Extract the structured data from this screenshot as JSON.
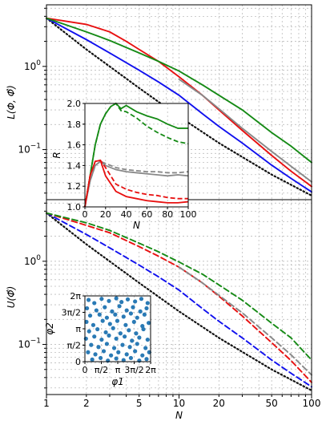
{
  "figure": {
    "xlabel": "N",
    "xticks": [
      {
        "value": 1,
        "label": "1"
      },
      {
        "value": 2,
        "label": "2"
      },
      {
        "value": 5,
        "label": "5"
      },
      {
        "value": 10,
        "label": "10"
      },
      {
        "value": 20,
        "label": "20"
      },
      {
        "value": 50,
        "label": "50"
      },
      {
        "value": 100,
        "label": "100"
      }
    ]
  },
  "chart_data": [
    {
      "id": "top",
      "type": "line",
      "xscale": "log",
      "yscale": "log",
      "xlim": [
        1,
        100
      ],
      "ylim": [
        0.025,
        5.5
      ],
      "ylabel": "L(Φ, Φ̂)",
      "yticks": [
        {
          "value": 1,
          "label": "10^0"
        },
        {
          "value": 0.1,
          "label": "10^-1"
        }
      ],
      "grid": true,
      "series": [
        {
          "style": "solid",
          "color": "#111111",
          "dash": "dotted",
          "x": [
            1,
            2,
            5,
            10,
            20,
            50,
            100
          ],
          "y": [
            3.8,
            1.6,
            0.55,
            0.25,
            0.12,
            0.05,
            0.028
          ]
        },
        {
          "style": "solid",
          "color": "#1010ee",
          "x": [
            1,
            2,
            3,
            5,
            7,
            10,
            15,
            20,
            30,
            50,
            70,
            100
          ],
          "y": [
            3.8,
            2.1,
            1.45,
            0.9,
            0.65,
            0.45,
            0.27,
            0.19,
            0.12,
            0.065,
            0.045,
            0.031
          ]
        },
        {
          "style": "solid",
          "color": "#e81010",
          "x": [
            1,
            2,
            3,
            4,
            5,
            7,
            10,
            15,
            20,
            30,
            50,
            70,
            100
          ],
          "y": [
            3.8,
            3.2,
            2.6,
            2.0,
            1.6,
            1.15,
            0.75,
            0.45,
            0.3,
            0.17,
            0.085,
            0.055,
            0.036
          ]
        },
        {
          "style": "solid",
          "color": "#888888",
          "x": [
            10,
            15,
            20,
            30,
            50,
            70,
            100
          ],
          "y": [
            0.7,
            0.45,
            0.31,
            0.18,
            0.095,
            0.063,
            0.041
          ]
        },
        {
          "style": "solid",
          "color": "#158a15",
          "x": [
            1,
            2,
            3,
            5,
            7,
            10,
            15,
            20,
            30,
            50,
            70,
            100
          ],
          "y": [
            3.8,
            2.6,
            2.05,
            1.45,
            1.15,
            0.88,
            0.6,
            0.45,
            0.3,
            0.16,
            0.11,
            0.07
          ]
        }
      ]
    },
    {
      "id": "inset-R",
      "type": "line",
      "xlim": [
        0,
        100
      ],
      "ylim": [
        1.0,
        2.0
      ],
      "xlabel": "N",
      "ylabel": "R",
      "xticks": [
        {
          "value": 0,
          "label": "0"
        },
        {
          "value": 20,
          "label": "20"
        },
        {
          "value": 40,
          "label": "40"
        },
        {
          "value": 60,
          "label": "60"
        },
        {
          "value": 80,
          "label": "80"
        },
        {
          "value": 100,
          "label": "100"
        }
      ],
      "yticks": [
        {
          "value": 1.0,
          "label": "1.0"
        },
        {
          "value": 1.2,
          "label": "1.2"
        },
        {
          "value": 1.4,
          "label": "1.4"
        },
        {
          "value": 1.6,
          "label": "1.6"
        },
        {
          "value": 1.8,
          "label": "1.8"
        },
        {
          "value": 2.0,
          "label": "2.0"
        }
      ],
      "grid": true,
      "series": [
        {
          "color": "#158a15",
          "dash": "solid",
          "x": [
            0,
            5,
            10,
            15,
            20,
            25,
            30,
            35,
            40,
            50,
            60,
            70,
            80,
            90,
            100
          ],
          "y": [
            1.0,
            1.3,
            1.6,
            1.8,
            1.9,
            1.97,
            2.0,
            1.95,
            1.98,
            1.92,
            1.88,
            1.85,
            1.8,
            1.76,
            1.76
          ]
        },
        {
          "color": "#158a15",
          "dash": "dashed",
          "x": [
            0,
            5,
            10,
            15,
            20,
            25,
            30,
            35,
            40,
            50,
            60,
            70,
            80,
            90,
            100
          ],
          "y": [
            1.0,
            1.3,
            1.6,
            1.8,
            1.9,
            1.97,
            2.0,
            1.93,
            1.92,
            1.86,
            1.78,
            1.72,
            1.67,
            1.63,
            1.61
          ]
        },
        {
          "color": "#888888",
          "dash": "solid",
          "x": [
            0,
            5,
            10,
            15,
            20,
            30,
            40,
            50,
            60,
            70,
            80,
            90,
            100
          ],
          "y": [
            1.0,
            1.25,
            1.4,
            1.44,
            1.4,
            1.36,
            1.34,
            1.33,
            1.32,
            1.31,
            1.3,
            1.31,
            1.3
          ]
        },
        {
          "color": "#888888",
          "dash": "dashed",
          "x": [
            0,
            5,
            10,
            15,
            20,
            30,
            40,
            50,
            60,
            70,
            80,
            90,
            100
          ],
          "y": [
            1.0,
            1.25,
            1.4,
            1.44,
            1.42,
            1.38,
            1.36,
            1.35,
            1.34,
            1.34,
            1.33,
            1.33,
            1.34
          ]
        },
        {
          "color": "#e81010",
          "dash": "solid",
          "x": [
            0,
            5,
            10,
            15,
            20,
            30,
            40,
            50,
            60,
            70,
            80,
            90,
            100
          ],
          "y": [
            1.0,
            1.3,
            1.44,
            1.45,
            1.3,
            1.15,
            1.1,
            1.08,
            1.06,
            1.05,
            1.04,
            1.04,
            1.05
          ]
        },
        {
          "color": "#e81010",
          "dash": "dashed",
          "x": [
            0,
            5,
            10,
            15,
            20,
            30,
            40,
            50,
            60,
            70,
            80,
            90,
            100
          ],
          "y": [
            1.0,
            1.3,
            1.44,
            1.45,
            1.38,
            1.22,
            1.17,
            1.14,
            1.12,
            1.11,
            1.09,
            1.08,
            1.08
          ]
        }
      ]
    },
    {
      "id": "bottom",
      "type": "line",
      "xscale": "log",
      "yscale": "log",
      "xlim": [
        1,
        100
      ],
      "ylim": [
        0.025,
        5.5
      ],
      "xlabel": "N",
      "ylabel": "U(Φ̂)",
      "yticks": [
        {
          "value": 1,
          "label": "10^0"
        },
        {
          "value": 0.1,
          "label": "10^-1"
        }
      ],
      "grid": true,
      "series": [
        {
          "color": "#111111",
          "dash": "dotted",
          "x": [
            1,
            2,
            5,
            10,
            20,
            50,
            100
          ],
          "y": [
            3.8,
            1.6,
            0.55,
            0.25,
            0.12,
            0.05,
            0.028
          ]
        },
        {
          "color": "#1010ee",
          "dash": "dashed",
          "x": [
            1,
            2,
            3,
            5,
            7,
            10,
            15,
            20,
            30,
            50,
            70,
            100
          ],
          "y": [
            3.8,
            2.1,
            1.45,
            0.9,
            0.65,
            0.45,
            0.27,
            0.19,
            0.12,
            0.065,
            0.045,
            0.031
          ]
        },
        {
          "color": "#e81010",
          "dash": "dashed",
          "x": [
            1,
            2,
            3,
            5,
            7,
            10,
            15,
            20,
            30,
            50,
            70,
            100
          ],
          "y": [
            3.8,
            2.7,
            2.2,
            1.5,
            1.15,
            0.85,
            0.55,
            0.38,
            0.22,
            0.105,
            0.064,
            0.035
          ]
        },
        {
          "color": "#888888",
          "dash": "dashed",
          "x": [
            10,
            15,
            20,
            30,
            50,
            70,
            100
          ],
          "y": [
            0.85,
            0.55,
            0.39,
            0.24,
            0.12,
            0.075,
            0.043
          ]
        },
        {
          "color": "#158a15",
          "dash": "dashed",
          "x": [
            1,
            2,
            3,
            5,
            7,
            10,
            15,
            20,
            30,
            50,
            70,
            100
          ],
          "y": [
            3.8,
            2.9,
            2.35,
            1.65,
            1.3,
            0.98,
            0.7,
            0.52,
            0.34,
            0.18,
            0.12,
            0.065
          ]
        }
      ]
    },
    {
      "id": "inset-phi",
      "type": "scatter",
      "xlabel": "φ1",
      "ylabel": "φ2",
      "xlim": [
        0,
        6.2832
      ],
      "ylim": [
        0,
        6.2832
      ],
      "grid": true,
      "xticks": [
        {
          "value": 0,
          "label": "0"
        },
        {
          "value": 1.5708,
          "label": "π/2"
        },
        {
          "value": 3.1416,
          "label": "π"
        },
        {
          "value": 4.7124,
          "label": "3π/2"
        },
        {
          "value": 6.2832,
          "label": "2π"
        }
      ],
      "yticks": [
        {
          "value": 0,
          "label": "0"
        },
        {
          "value": 1.5708,
          "label": "π/2"
        },
        {
          "value": 3.1416,
          "label": "π"
        },
        {
          "value": 4.7124,
          "label": "3π/2"
        },
        {
          "value": 6.2832,
          "label": "2π"
        }
      ],
      "color": "#2a7ab5",
      "points": [
        [
          0.35,
          5.9
        ],
        [
          0.9,
          5.6
        ],
        [
          1.6,
          6.0
        ],
        [
          2.3,
          5.8
        ],
        [
          3.0,
          6.05
        ],
        [
          3.5,
          5.7
        ],
        [
          4.1,
          5.95
        ],
        [
          4.8,
          5.75
        ],
        [
          5.4,
          6.0
        ],
        [
          6.0,
          5.6
        ],
        [
          0.2,
          5.1
        ],
        [
          1.1,
          4.9
        ],
        [
          1.9,
          5.2
        ],
        [
          2.6,
          4.8
        ],
        [
          3.3,
          5.3
        ],
        [
          4.0,
          4.9
        ],
        [
          4.6,
          5.2
        ],
        [
          5.3,
          4.8
        ],
        [
          5.9,
          5.1
        ],
        [
          0.5,
          4.4
        ],
        [
          1.4,
          4.5
        ],
        [
          2.1,
          4.2
        ],
        [
          2.9,
          4.5
        ],
        [
          3.7,
          4.3
        ],
        [
          4.4,
          4.6
        ],
        [
          5.0,
          4.2
        ],
        [
          5.7,
          4.5
        ],
        [
          0.15,
          3.8
        ],
        [
          0.8,
          3.5
        ],
        [
          1.7,
          3.9
        ],
        [
          2.4,
          3.6
        ],
        [
          3.1,
          3.9
        ],
        [
          3.9,
          3.5
        ],
        [
          4.7,
          3.8
        ],
        [
          5.5,
          3.4
        ],
        [
          6.1,
          3.7
        ],
        [
          0.4,
          2.9
        ],
        [
          1.2,
          3.1
        ],
        [
          2.0,
          2.8
        ],
        [
          2.7,
          3.2
        ],
        [
          3.4,
          2.7
        ],
        [
          4.2,
          3.0
        ],
        [
          4.9,
          2.7
        ],
        [
          5.6,
          3.1
        ],
        [
          0.1,
          2.2
        ],
        [
          0.9,
          2.4
        ],
        [
          1.6,
          2.1
        ],
        [
          2.3,
          2.5
        ],
        [
          3.0,
          2.2
        ],
        [
          3.8,
          2.4
        ],
        [
          4.5,
          2.0
        ],
        [
          5.2,
          2.3
        ],
        [
          6.0,
          2.1
        ],
        [
          0.6,
          1.6
        ],
        [
          1.3,
          1.4
        ],
        [
          2.1,
          1.7
        ],
        [
          2.8,
          1.3
        ],
        [
          3.6,
          1.6
        ],
        [
          4.3,
          1.4
        ],
        [
          5.0,
          1.7
        ],
        [
          5.8,
          1.3
        ],
        [
          0.3,
          0.9
        ],
        [
          1.0,
          0.7
        ],
        [
          1.8,
          1.0
        ],
        [
          2.5,
          0.6
        ],
        [
          3.2,
          0.9
        ],
        [
          4.0,
          0.7
        ],
        [
          4.8,
          1.0
        ],
        [
          5.5,
          0.6
        ],
        [
          6.15,
          0.9
        ],
        [
          0.7,
          0.2
        ],
        [
          1.5,
          0.35
        ],
        [
          2.2,
          0.1
        ],
        [
          3.0,
          0.3
        ],
        [
          3.7,
          0.15
        ],
        [
          4.4,
          0.35
        ],
        [
          5.2,
          0.1
        ],
        [
          5.9,
          0.25
        ]
      ]
    }
  ]
}
